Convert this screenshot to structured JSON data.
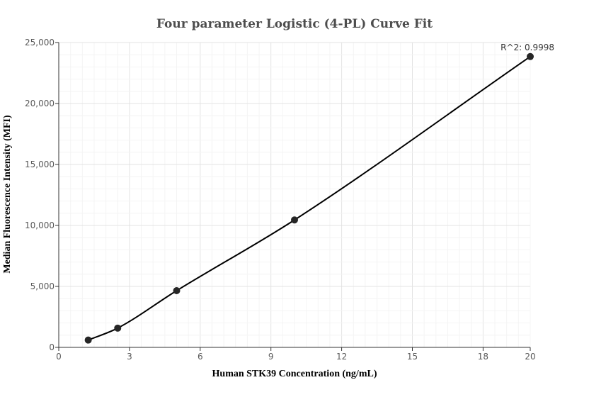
{
  "chart_data": {
    "type": "scatter",
    "title": "Four parameter Logistic (4-PL) Curve Fit",
    "xlabel": "Human STK39 Concentration (ng/mL)",
    "ylabel": "Median Fluorescence Intensity (MFI)",
    "xlim": [
      0,
      20
    ],
    "ylim": [
      0,
      25000
    ],
    "x_ticks": [
      0,
      3,
      6,
      9,
      12,
      15,
      18,
      20
    ],
    "x_tick_labels": [
      "0",
      "3",
      "6",
      "9",
      "12",
      "15",
      "18",
      "20"
    ],
    "y_ticks": [
      0,
      5000,
      10000,
      15000,
      20000,
      25000
    ],
    "y_tick_labels": [
      "0",
      "5,000",
      "10,000",
      "15,000",
      "20,000",
      "25,000"
    ],
    "grid": true,
    "series": [
      {
        "points": [
          {
            "x": 1.25,
            "y": 600
          },
          {
            "x": 2.5,
            "y": 1580
          },
          {
            "x": 5,
            "y": 4650
          },
          {
            "x": 10,
            "y": 10450
          },
          {
            "x": 20,
            "y": 23850
          }
        ],
        "fit": "4-PL"
      }
    ],
    "annotation": "R^2: 0.9998",
    "colors": {
      "points": "#262626",
      "curve": "#000000",
      "grid": "#e6e6e6",
      "axis": "#333333"
    }
  }
}
